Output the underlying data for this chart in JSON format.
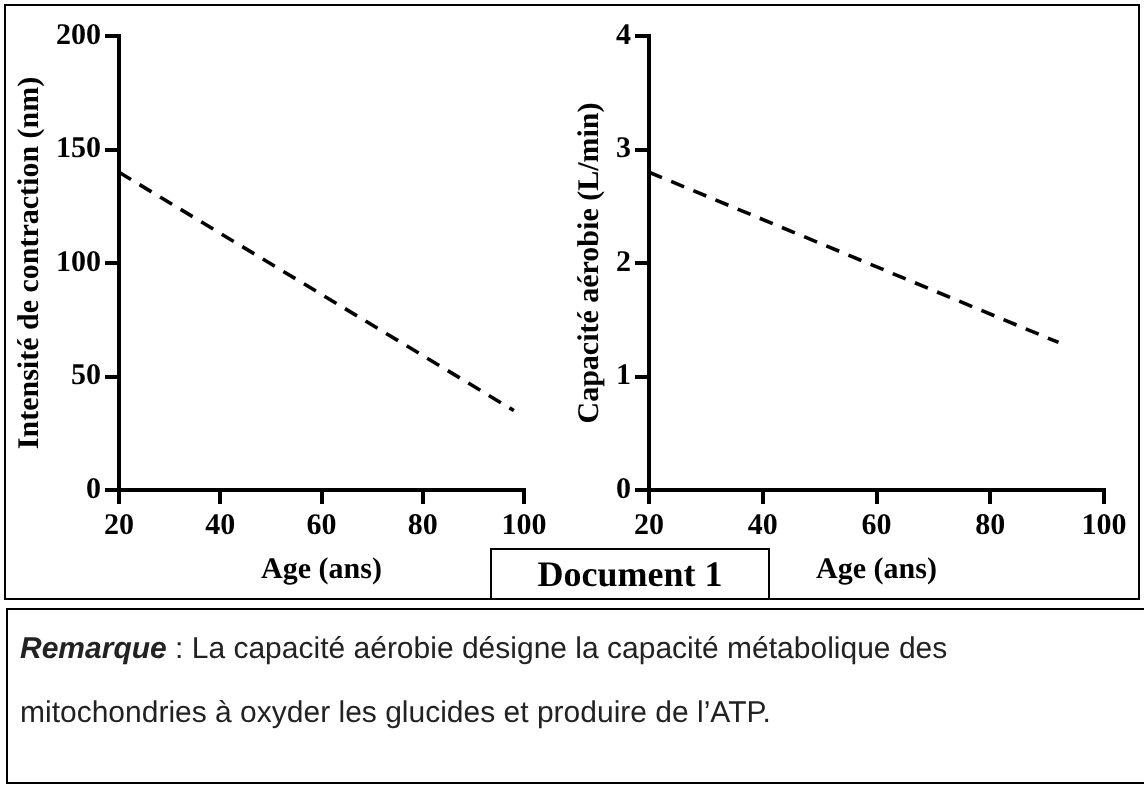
{
  "chart_data": [
    {
      "type": "line",
      "xlabel": "Age (ans)",
      "ylabel": "Intensité de contraction (nm)",
      "xlim": [
        20,
        100
      ],
      "xticks": [
        20,
        40,
        60,
        80,
        100
      ],
      "ylim": [
        0,
        200
      ],
      "yticks": [
        0,
        50,
        100,
        150,
        200
      ],
      "grid": false,
      "legend": false,
      "marker": "none",
      "line_style": "dashed",
      "series": [
        {
          "color": "#000000",
          "x": [
            20,
            98
          ],
          "values": [
            140,
            35
          ]
        }
      ]
    },
    {
      "type": "line",
      "xlabel": "Age (ans)",
      "ylabel": "Capacité aérobie (L/min)",
      "xlim": [
        20,
        100
      ],
      "xticks": [
        20,
        40,
        60,
        80,
        100
      ],
      "ylim": [
        0,
        4
      ],
      "yticks": [
        0,
        1,
        2,
        3,
        4
      ],
      "grid": false,
      "legend": false,
      "marker": "none",
      "line_style": "dashed",
      "series": [
        {
          "color": "#000000",
          "x": [
            20,
            92
          ],
          "values": [
            2.8,
            1.3
          ]
        }
      ]
    },
    {
      "type": "other",
      "annotations": [
        "Document 1",
        "Remarque : La capacité aérobie désigne la capacité métabolique des mitochondries à oxyder les glucides et produire de l’ATP."
      ]
    }
  ]
}
